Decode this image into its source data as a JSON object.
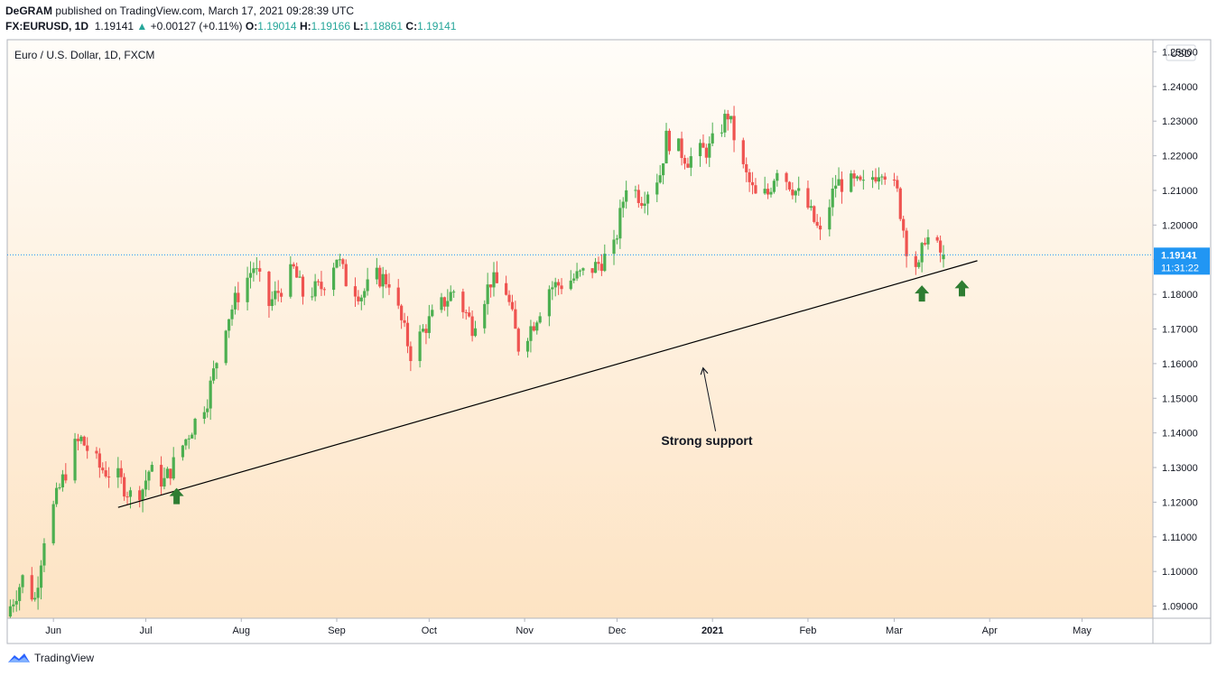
{
  "header": {
    "author": "DeGRAM",
    "published": "published on TradingView.com, March 17, 2021 09:28:39 UTC",
    "symbol": "FX:EURUSD, 1D",
    "last": "1.19141",
    "change": "+0.00127 (+0.11%)",
    "open_label": "O:",
    "open": "1.19014",
    "high_label": "H:",
    "high": "1.19166",
    "low_label": "L:",
    "low": "1.18861",
    "close_label": "C:",
    "close": "1.19141"
  },
  "footer": {
    "brand": "TradingView",
    "logo_icon": "tradingview-logo-icon"
  },
  "chart_data": {
    "type": "candlestick",
    "title": "Euro / U.S. Dollar, 1D, FXCM",
    "currency_label": "USD",
    "y_ticks": [
      "1.25000",
      "1.24000",
      "1.23000",
      "1.22000",
      "1.21000",
      "1.20000",
      "1.19000",
      "1.18000",
      "1.17000",
      "1.16000",
      "1.15000",
      "1.14000",
      "1.13000",
      "1.12000",
      "1.11000",
      "1.10000",
      "1.09000"
    ],
    "ylim": [
      1.0865,
      1.2535
    ],
    "x_ticks": [
      {
        "label": "Jun",
        "date": "2020-06-01",
        "bold": false
      },
      {
        "label": "Jul",
        "date": "2020-07-01",
        "bold": false
      },
      {
        "label": "Aug",
        "date": "2020-08-01",
        "bold": false
      },
      {
        "label": "Sep",
        "date": "2020-09-01",
        "bold": false
      },
      {
        "label": "Oct",
        "date": "2020-10-01",
        "bold": false
      },
      {
        "label": "Nov",
        "date": "2020-11-01",
        "bold": false
      },
      {
        "label": "Dec",
        "date": "2020-12-01",
        "bold": false
      },
      {
        "label": "2021",
        "date": "2021-01-01",
        "bold": true
      },
      {
        "label": "Feb",
        "date": "2021-02-01",
        "bold": false
      },
      {
        "label": "Mar",
        "date": "2021-03-01",
        "bold": false
      },
      {
        "label": "Apr",
        "date": "2021-04-01",
        "bold": false
      },
      {
        "label": "May",
        "date": "2021-05-01",
        "bold": false
      }
    ],
    "xlim": [
      "2020-05-17",
      "2021-05-24"
    ],
    "last_price": {
      "label": "1.19141",
      "value": 1.19141,
      "countdown": "11:31:22",
      "color": "#2196f3"
    },
    "up_color": "#4caf50",
    "down_color": "#ef5350",
    "background_gradient": [
      "#fffdf9",
      "#fde3c3"
    ],
    "close_anchors": [
      [
        "2020-05-18",
        1.09
      ],
      [
        "2020-05-22",
        1.098
      ],
      [
        "2020-05-26",
        1.092
      ],
      [
        "2020-05-29",
        1.11
      ],
      [
        "2020-06-03",
        1.124
      ],
      [
        "2020-06-08",
        1.136
      ],
      [
        "2020-06-10",
        1.138
      ],
      [
        "2020-06-16",
        1.13
      ],
      [
        "2020-06-22",
        1.127
      ],
      [
        "2020-06-26",
        1.122
      ],
      [
        "2020-06-30",
        1.124
      ],
      [
        "2020-07-02",
        1.129
      ],
      [
        "2020-07-07",
        1.126
      ],
      [
        "2020-07-10",
        1.131
      ],
      [
        "2020-07-15",
        1.14
      ],
      [
        "2020-07-21",
        1.15
      ],
      [
        "2020-07-27",
        1.172
      ],
      [
        "2020-07-31",
        1.18
      ],
      [
        "2020-08-05",
        1.188
      ],
      [
        "2020-08-10",
        1.177
      ],
      [
        "2020-08-14",
        1.182
      ],
      [
        "2020-08-18",
        1.187
      ],
      [
        "2020-08-21",
        1.18
      ],
      [
        "2020-08-27",
        1.182
      ],
      [
        "2020-09-01",
        1.191
      ],
      [
        "2020-09-04",
        1.184
      ],
      [
        "2020-09-09",
        1.18
      ],
      [
        "2020-09-14",
        1.185
      ],
      [
        "2020-09-18",
        1.184
      ],
      [
        "2020-09-22",
        1.172
      ],
      [
        "2020-09-25",
        1.163
      ],
      [
        "2020-09-30",
        1.171
      ],
      [
        "2020-10-06",
        1.178
      ],
      [
        "2020-10-09",
        1.181
      ],
      [
        "2020-10-15",
        1.171
      ],
      [
        "2020-10-21",
        1.184
      ],
      [
        "2020-10-26",
        1.181
      ],
      [
        "2020-10-30",
        1.165
      ],
      [
        "2020-11-04",
        1.172
      ],
      [
        "2020-11-09",
        1.182
      ],
      [
        "2020-11-13",
        1.183
      ],
      [
        "2020-11-18",
        1.185
      ],
      [
        "2020-11-24",
        1.188
      ],
      [
        "2020-11-30",
        1.193
      ],
      [
        "2020-12-04",
        1.212
      ],
      [
        "2020-12-09",
        1.208
      ],
      [
        "2020-12-15",
        1.215
      ],
      [
        "2020-12-17",
        1.225
      ],
      [
        "2020-12-21",
        1.222
      ],
      [
        "2020-12-24",
        1.219
      ],
      [
        "2020-12-28",
        1.221
      ],
      [
        "2020-12-31",
        1.222
      ],
      [
        "2021-01-06",
        1.232
      ],
      [
        "2021-01-11",
        1.216
      ],
      [
        "2021-01-15",
        1.208
      ],
      [
        "2021-01-19",
        1.209
      ],
      [
        "2021-01-22",
        1.217
      ],
      [
        "2021-01-27",
        1.211
      ],
      [
        "2021-02-01",
        1.205
      ],
      [
        "2021-02-05",
        1.197
      ],
      [
        "2021-02-10",
        1.212
      ],
      [
        "2021-02-15",
        1.212
      ],
      [
        "2021-02-19",
        1.211
      ],
      [
        "2021-02-23",
        1.215
      ],
      [
        "2021-02-25",
        1.217
      ],
      [
        "2021-03-02",
        1.209
      ],
      [
        "2021-03-05",
        1.194
      ],
      [
        "2021-03-09",
        1.187
      ],
      [
        "2021-03-11",
        1.197
      ],
      [
        "2021-03-15",
        1.193
      ],
      [
        "2021-03-17",
        1.191
      ]
    ],
    "annotations": {
      "support_line": {
        "from": [
          "2020-06-22",
          1.1185
        ],
        "to": [
          "2021-03-28",
          1.1897
        ]
      },
      "pointer_arrow": {
        "tail": [
          "2021-01-02",
          1.1405
        ],
        "head": [
          "2020-12-29",
          1.1585
        ]
      },
      "label": {
        "text": "Strong support",
        "at": [
          "2020-12-29",
          1.1365
        ]
      },
      "up_arrows": [
        [
          "2020-07-11",
          1.1215
        ],
        [
          "2021-03-10",
          1.18
        ],
        [
          "2021-03-23",
          1.1815
        ]
      ],
      "up_arrow_color": "#2e7d32"
    }
  }
}
